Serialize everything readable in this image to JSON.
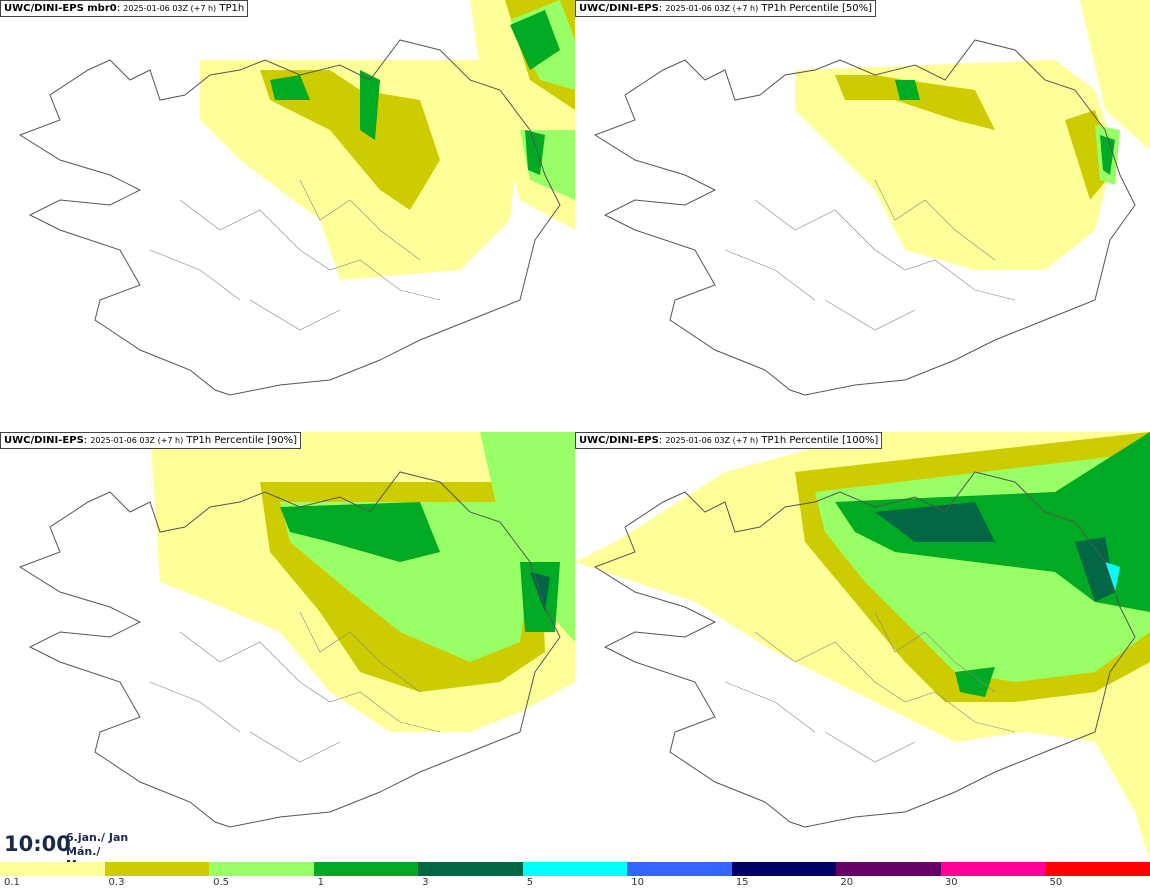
{
  "panels": [
    {
      "model": "UWC/DINI-EPS mbr0",
      "run": "2025-01-06 03Z (+7 h)",
      "field": "TP1h"
    },
    {
      "model": "UWC/DINI-EPS",
      "run": "2025-01-06 03Z (+7 h)",
      "field": "TP1h Percentile [50%]"
    },
    {
      "model": "UWC/DINI-EPS",
      "run": "2025-01-06 03Z (+7 h)",
      "field": "TP1h Percentile [90%]"
    },
    {
      "model": "UWC/DINI-EPS",
      "run": "2025-01-06 03Z (+7 h)",
      "field": "TP1h Percentile [100%]"
    }
  ],
  "valid_time": {
    "time": "10:00",
    "date_line1": "6.jan./ Jan",
    "date_line2": "Mán./ Mon"
  },
  "legend": {
    "levels": [
      "0.1",
      "0.3",
      "0.5",
      "1",
      "3",
      "5",
      "10",
      "15",
      "20",
      "30",
      "50"
    ],
    "colors": [
      "#ffff99",
      "#cccc00",
      "#99ff66",
      "#00aa22",
      "#006644",
      "#00ffff",
      "#3366ff",
      "#000066",
      "#660066",
      "#ff0099",
      "#ff0000"
    ]
  }
}
